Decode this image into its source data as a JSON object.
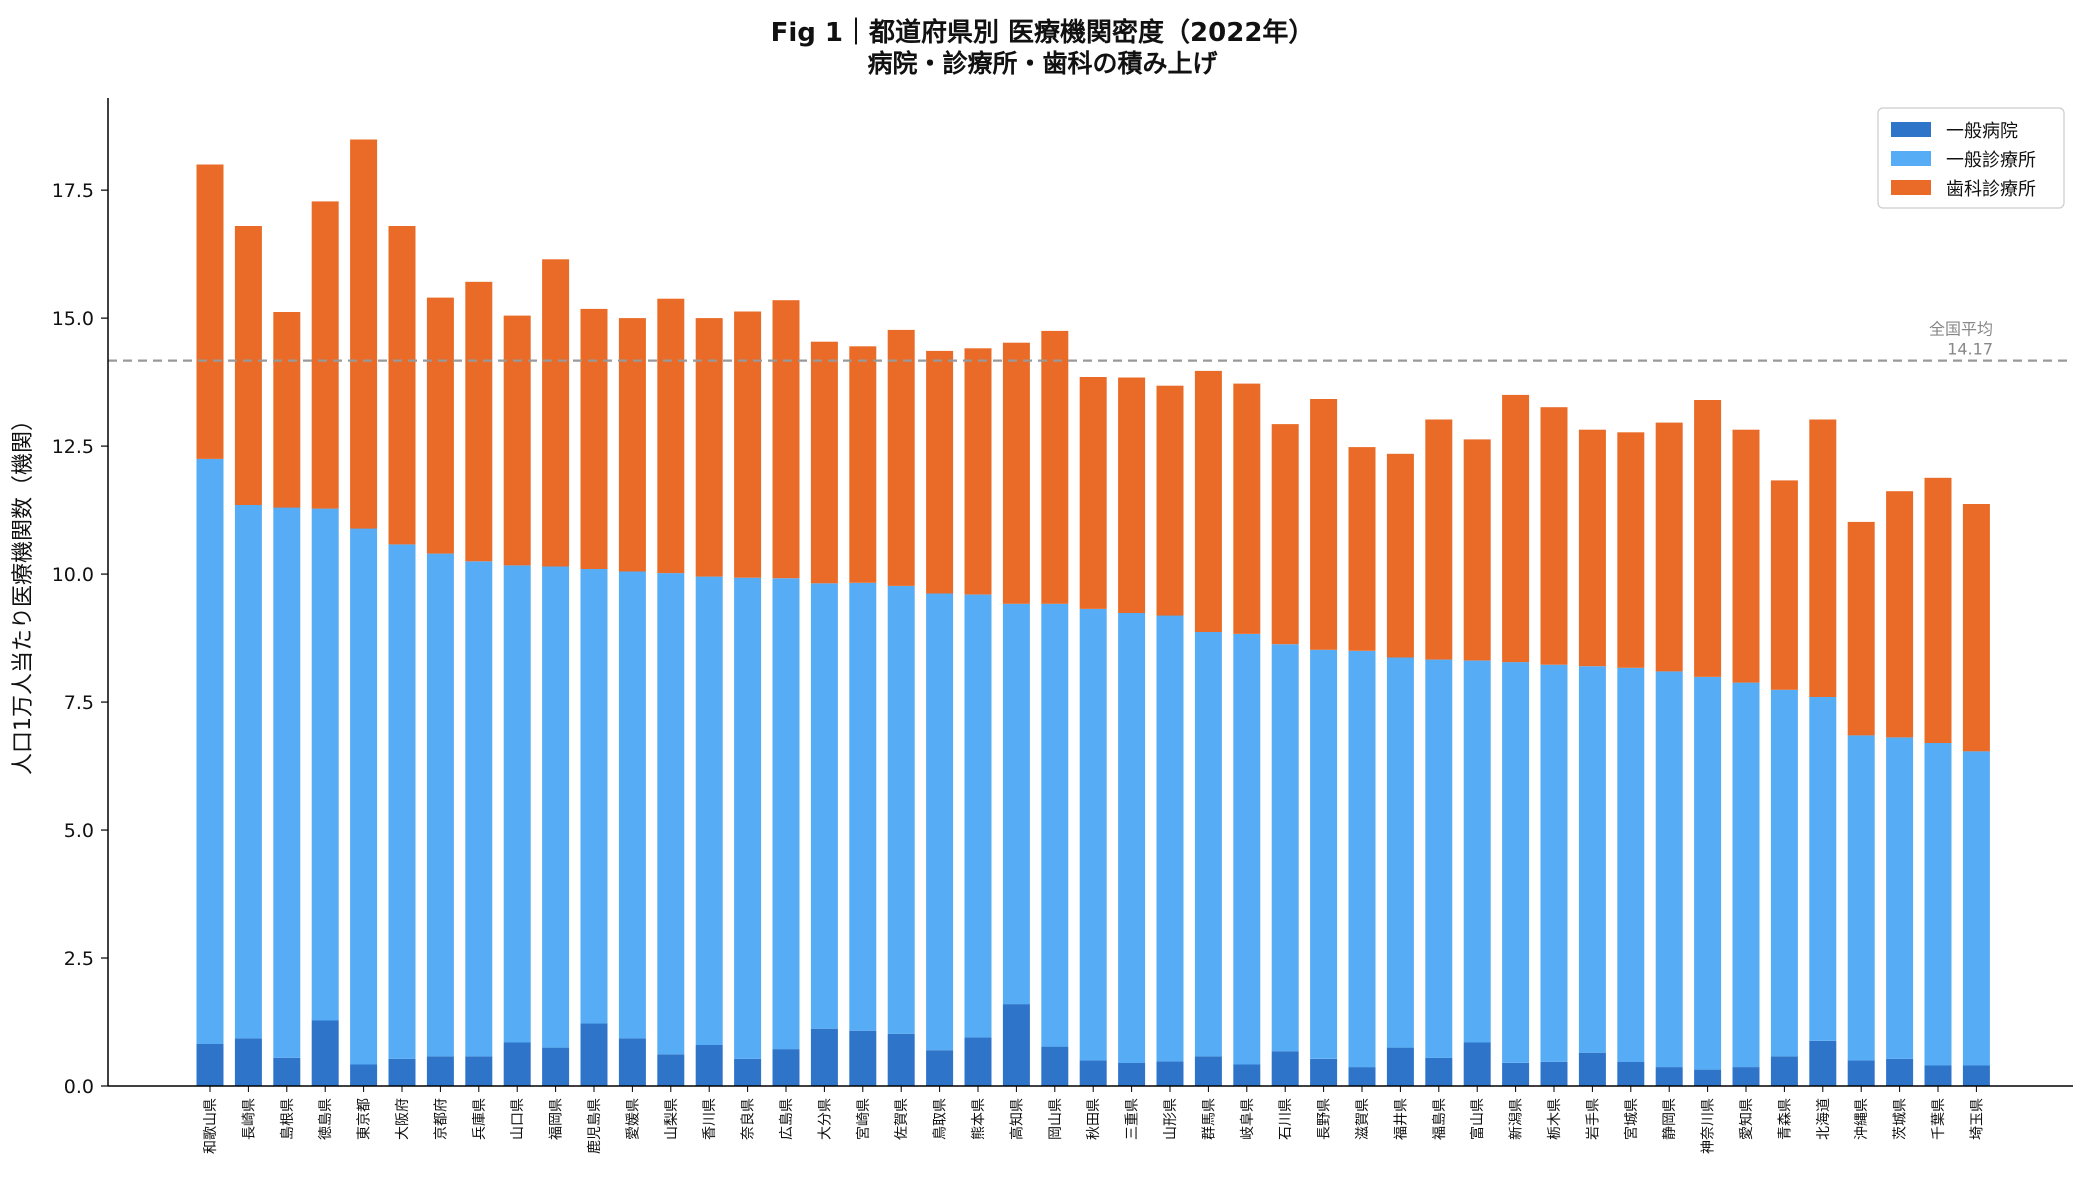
{
  "title_line1": "Fig 1｜都道府県別 医療機関密度（2022年）",
  "title_line2": "病院・診療所・歯科の積み上げ",
  "colors": {
    "general_hospital": "#2e75c9",
    "general_clinic": "#57adf5",
    "dental_clinic": "#e96b27",
    "average_line": "#999999"
  },
  "chart_data": {
    "type": "bar",
    "stacked": true,
    "ylabel": "人口1万人当たり医療機関数（機関）",
    "xlabel": "",
    "ylim": [
      0,
      19.3
    ],
    "yticks": [
      "0.0",
      "2.5",
      "5.0",
      "7.5",
      "10.0",
      "12.5",
      "15.0",
      "17.5"
    ],
    "ytick_values": [
      0,
      2.5,
      5,
      7.5,
      10,
      12.5,
      15,
      17.5
    ],
    "legend_position": "top-right",
    "grid": false,
    "categories": [
      "和歌山県",
      "長崎県",
      "島根県",
      "徳島県",
      "東京都",
      "大阪府",
      "京都府",
      "兵庫県",
      "山口県",
      "福岡県",
      "鹿児島県",
      "愛媛県",
      "山梨県",
      "香川県",
      "奈良県",
      "広島県",
      "大分県",
      "宮崎県",
      "佐賀県",
      "鳥取県",
      "熊本県",
      "高知県",
      "岡山県",
      "秋田県",
      "三重県",
      "山形県",
      "群馬県",
      "岐阜県",
      "石川県",
      "長野県",
      "滋賀県",
      "福井県",
      "福島県",
      "富山県",
      "新潟県",
      "栃木県",
      "岩手県",
      "宮城県",
      "静岡県",
      "神奈川県",
      "愛知県",
      "青森県",
      "北海道",
      "沖縄県",
      "茨城県",
      "千葉県",
      "埼玉県"
    ],
    "series": [
      {
        "name": "一般病院",
        "values": [
          0.82,
          0.93,
          0.55,
          1.28,
          0.42,
          0.53,
          0.58,
          0.58,
          0.85,
          0.75,
          1.22,
          0.93,
          0.62,
          0.8,
          0.53,
          0.72,
          1.12,
          1.08,
          1.02,
          0.7,
          0.95,
          1.6,
          0.77,
          0.5,
          0.45,
          0.48,
          0.58,
          0.42,
          0.68,
          0.53,
          0.37,
          0.75,
          0.55,
          0.85,
          0.45,
          0.47,
          0.65,
          0.47,
          0.37,
          0.32,
          0.37,
          0.58,
          0.88,
          0.5,
          0.53,
          0.4,
          0.4
        ]
      },
      {
        "name": "一般診療所",
        "values": [
          11.43,
          10.42,
          10.75,
          10.0,
          10.47,
          10.05,
          9.82,
          9.67,
          9.32,
          9.4,
          8.88,
          9.12,
          9.4,
          9.15,
          9.4,
          9.2,
          8.7,
          8.75,
          8.75,
          8.92,
          8.65,
          7.82,
          8.65,
          8.82,
          8.79,
          8.71,
          8.29,
          8.41,
          7.95,
          7.99,
          8.13,
          7.62,
          7.78,
          7.46,
          7.83,
          7.76,
          7.55,
          7.7,
          7.73,
          7.67,
          7.51,
          7.16,
          6.72,
          6.35,
          6.28,
          6.3,
          6.14
        ]
      },
      {
        "name": "歯科診療所",
        "values": [
          5.75,
          5.45,
          3.82,
          6.0,
          7.6,
          6.22,
          5.0,
          5.46,
          4.88,
          6.0,
          5.08,
          4.95,
          5.36,
          5.05,
          5.2,
          5.43,
          4.72,
          4.62,
          5.0,
          4.74,
          4.81,
          5.1,
          5.33,
          4.53,
          4.6,
          4.49,
          5.1,
          4.89,
          4.3,
          4.9,
          3.98,
          3.98,
          4.69,
          4.32,
          5.22,
          5.03,
          4.62,
          4.6,
          4.86,
          5.41,
          4.94,
          4.09,
          5.42,
          4.17,
          4.81,
          5.18,
          4.83
        ]
      }
    ],
    "reference_line": {
      "label": "全国平均",
      "value": 14.17,
      "value_label": "14.17"
    }
  }
}
